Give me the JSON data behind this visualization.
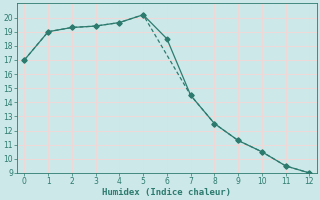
{
  "line1_x": [
    0,
    1,
    2,
    3,
    4,
    5,
    6,
    7,
    8,
    9,
    10,
    11,
    12
  ],
  "line1_y": [
    17.0,
    19.0,
    19.3,
    19.4,
    19.65,
    20.2,
    18.5,
    14.5,
    12.5,
    11.3,
    10.5,
    9.5,
    9.0
  ],
  "line2_x": [
    0,
    1,
    2,
    3,
    4,
    5,
    7,
    8,
    9,
    10,
    11,
    12
  ],
  "line2_y": [
    17.0,
    19.0,
    19.3,
    19.4,
    19.65,
    20.2,
    14.5,
    12.5,
    11.3,
    10.5,
    9.5,
    9.0
  ],
  "color": "#2d7b6f",
  "bg_color": "#cce8e8",
  "grid_color": "#f0d8d8",
  "xlabel": "Humidex (Indice chaleur)",
  "ylim": [
    9,
    21
  ],
  "xlim": [
    -0.3,
    12.3
  ],
  "yticks": [
    9,
    10,
    11,
    12,
    13,
    14,
    15,
    16,
    17,
    18,
    19,
    20
  ],
  "xticks": [
    0,
    1,
    2,
    3,
    4,
    5,
    6,
    7,
    8,
    9,
    10,
    11,
    12
  ],
  "markersize": 2.5,
  "linewidth": 0.9
}
